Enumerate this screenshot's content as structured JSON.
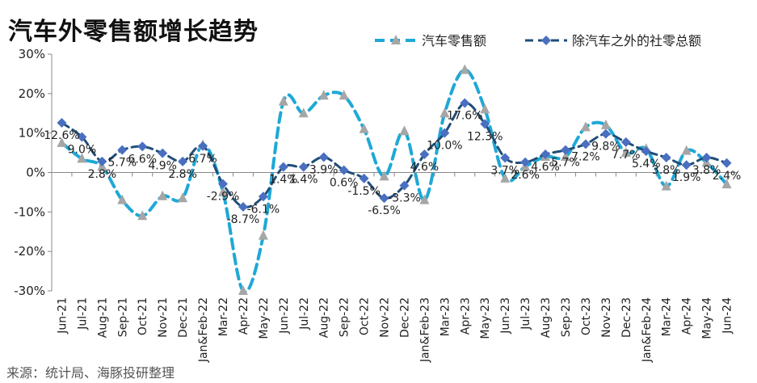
{
  "title": "汽车外零售额增长趋势",
  "source": "来源：统计局、海豚投研整理",
  "colors": {
    "auto": "#1fa8d6",
    "ex_auto": "#1f4e79",
    "auto_marker": "#a6a6a6",
    "ex_auto_marker": "#4a6fc1"
  },
  "chart_data": {
    "type": "line",
    "title": "汽车外零售额增长趋势",
    "xlabel": "",
    "ylabel": "",
    "ylim": [
      -30,
      30
    ],
    "yticks": [
      "-30%",
      "-20%",
      "-10%",
      "0%",
      "10%",
      "20%",
      "30%"
    ],
    "legend_position": "top-right",
    "grid": false,
    "categories": [
      "Jun-21",
      "Jul-21",
      "Aug-21",
      "Sep-21",
      "Oct-21",
      "Nov-21",
      "Dec-21",
      "Jan&Feb-22",
      "Mar-22",
      "Apr-22",
      "May-22",
      "Jun-22",
      "Jul-22",
      "Aug-22",
      "Sep-22",
      "Oct-22",
      "Nov-22",
      "Dec-22",
      "Jan&Feb-23",
      "Mar-23",
      "Apr-23",
      "May-23",
      "Jun-23",
      "Jul-23",
      "Aug-23",
      "Sep-23",
      "Oct-23",
      "Nov-23",
      "Dec-23",
      "Jan&Feb-24",
      "Mar-24",
      "Apr-24",
      "May-24",
      "Jun-24"
    ],
    "series": [
      {
        "name": "汽车零售额",
        "values": [
          7.5,
          3.5,
          1.5,
          -7.0,
          -11.0,
          -6.0,
          -6.5,
          7.0,
          -5.0,
          -30.0,
          -16.0,
          18.0,
          15.0,
          19.5,
          19.5,
          11.0,
          -1.0,
          10.5,
          -7.0,
          15.0,
          26.0,
          16.0,
          -1.5,
          1.5,
          4.0,
          4.0,
          11.5,
          12.0,
          5.0,
          6.0,
          -3.5,
          5.5,
          2.5,
          -3.0
        ]
      },
      {
        "name": "除汽车之外的社零总额",
        "values": [
          12.6,
          9.0,
          2.8,
          5.7,
          6.6,
          4.9,
          2.8,
          6.7,
          -2.9,
          -8.7,
          -6.1,
          1.4,
          1.4,
          3.9,
          0.6,
          -1.5,
          -6.5,
          -3.3,
          4.6,
          10.0,
          17.6,
          12.3,
          3.7,
          2.6,
          4.6,
          5.7,
          7.2,
          9.8,
          7.7,
          5.4,
          3.8,
          1.9,
          3.8,
          2.4
        ]
      }
    ],
    "data_labels": [
      "12.6%",
      "9.0%",
      "2.8%",
      "5.7%",
      "6.6%",
      "4.9%",
      "2.8%",
      "6.7%",
      "-2.9%",
      "-8.7%",
      "-6.1%",
      "1.4%",
      "1.4%",
      "3.9%",
      "0.6%",
      "-1.5%",
      "-6.5%",
      "-3.3%",
      "4.6%",
      "10.0%",
      "17.6%",
      "12.3%",
      "3.7%",
      "2.6%",
      "4.6%",
      "5.7%",
      "7.2%",
      "9.8%",
      "7.7%",
      "5.4%",
      "3.8%",
      "1.9%",
      "3.8%",
      "2.4%"
    ]
  }
}
